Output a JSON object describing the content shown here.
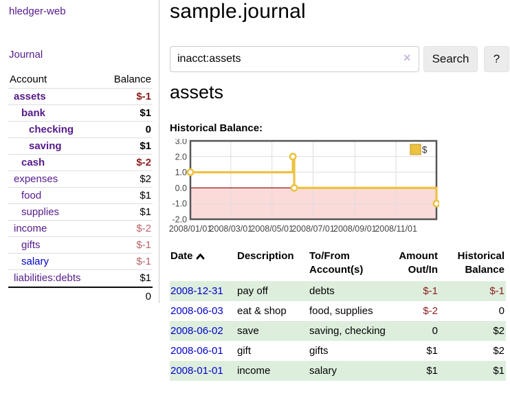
{
  "app": {
    "brand": "hledger-web",
    "nav_journal": "Journal"
  },
  "colors": {
    "accent_purple": "#551a8b",
    "link_blue": "#0000cc",
    "negative_strong": "#8b1c1c",
    "negative_muted": "#b5646a",
    "row_green": "#ddeedd",
    "series_gold": "#edc240",
    "negative_region_pink": "#fbdada",
    "zero_line_red": "#991111"
  },
  "sidebar": {
    "header": {
      "account": "Account",
      "balance": "Balance"
    },
    "accounts": [
      {
        "name": "assets",
        "indent": 0,
        "bold": true,
        "balance": "$-1",
        "balance_class": "neg-strong"
      },
      {
        "name": "bank",
        "indent": 1,
        "bold": true,
        "balance": "$1",
        "balance_class": ""
      },
      {
        "name": "checking",
        "indent": 2,
        "bold": true,
        "balance": "0",
        "balance_class": ""
      },
      {
        "name": "saving",
        "indent": 2,
        "bold": true,
        "balance": "$1",
        "balance_class": ""
      },
      {
        "name": "cash",
        "indent": 1,
        "bold": true,
        "balance": "$-2",
        "balance_class": "neg-strong"
      },
      {
        "name": "expenses",
        "indent": 0,
        "bold": false,
        "balance": "$2",
        "balance_class": ""
      },
      {
        "name": "food",
        "indent": 1,
        "bold": false,
        "balance": "$1",
        "balance_class": ""
      },
      {
        "name": "supplies",
        "indent": 1,
        "bold": false,
        "balance": "$1",
        "balance_class": ""
      },
      {
        "name": "income",
        "indent": 0,
        "bold": false,
        "balance": "$-2",
        "balance_class": "neg-muted"
      },
      {
        "name": "gifts",
        "indent": 1,
        "bold": false,
        "balance": "$-1",
        "balance_class": "neg-muted"
      },
      {
        "name": "salary",
        "indent": 1,
        "bold": false,
        "link_color": "blue",
        "balance": "$-1",
        "balance_class": "neg-muted"
      },
      {
        "name": "liabilities:debts",
        "indent": 0,
        "bold": false,
        "balance": "$1",
        "balance_class": ""
      }
    ],
    "total": "0"
  },
  "main": {
    "title": "sample.journal",
    "search": {
      "value": "inacct:assets",
      "clear_icon": "×",
      "button": "Search",
      "help_button": "?"
    },
    "account_heading": "assets"
  },
  "chart_data": {
    "type": "line",
    "title": "Historical Balance:",
    "step": true,
    "series": [
      {
        "name": "$",
        "color": "#edc240",
        "points": [
          [
            "2008-01-01",
            1.0
          ],
          [
            "2008-06-01",
            2.0
          ],
          [
            "2008-06-03",
            0.0
          ],
          [
            "2008-12-31",
            -1.0
          ]
        ]
      }
    ],
    "xrange": [
      "2008-01-01",
      "2008-12-31"
    ],
    "ylim": [
      -2.0,
      3.0
    ],
    "yticks": [
      "3.0",
      "2.0",
      "1.0",
      "0.0",
      "-1.0",
      "-2.0"
    ],
    "xticks": [
      "2008/01/01",
      "2008/03/01",
      "2008/05/01",
      "2008/07/01",
      "2008/09/01",
      "2008/11/01"
    ],
    "grid": true,
    "legend": {
      "label": "$",
      "position": "top-right"
    },
    "negative_region_fill": "#fbdada",
    "zero_line_color": "#991111"
  },
  "register": {
    "headers": {
      "date": "Date",
      "description": "Description",
      "tofrom_line1": "To/From",
      "tofrom_line2": "Account(s)",
      "amount_line1": "Amount",
      "amount_line2": "Out/In",
      "balance_line1": "Historical",
      "balance_line2": "Balance"
    },
    "rows": [
      {
        "date": "2008-12-31",
        "description": "pay off",
        "accounts": "debts",
        "amount": "$-1",
        "amount_negative": true,
        "balance": "$-1",
        "balance_negative": true
      },
      {
        "date": "2008-06-03",
        "description": "eat & shop",
        "accounts": "food, supplies",
        "amount": "$-2",
        "amount_negative": true,
        "balance": "0",
        "balance_negative": false
      },
      {
        "date": "2008-06-02",
        "description": "save",
        "accounts": "saving, checking",
        "amount": "0",
        "amount_negative": false,
        "balance": "$2",
        "balance_negative": false
      },
      {
        "date": "2008-06-01",
        "description": "gift",
        "accounts": "gifts",
        "amount": "$1",
        "amount_negative": false,
        "balance": "$2",
        "balance_negative": false
      },
      {
        "date": "2008-01-01",
        "description": "income",
        "accounts": "salary",
        "amount": "$1",
        "amount_negative": false,
        "balance": "$1",
        "balance_negative": false
      }
    ]
  }
}
